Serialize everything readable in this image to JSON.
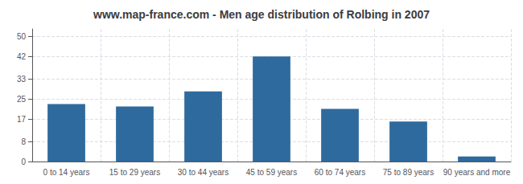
{
  "chart_data": {
    "type": "bar",
    "title": "www.map-france.com - Men age distribution of Rolbing in 2007",
    "categories": [
      "0 to 14 years",
      "15 to 29 years",
      "30 to 44 years",
      "45 to 59 years",
      "60 to 74 years",
      "75 to 89 years",
      "90 years and more"
    ],
    "values": [
      23,
      22,
      28,
      42,
      21,
      16,
      2
    ],
    "color": "#2e6a9e",
    "ylim": [
      0,
      53
    ],
    "yticks": [
      0,
      8,
      17,
      25,
      33,
      42,
      50
    ],
    "grid": true
  }
}
